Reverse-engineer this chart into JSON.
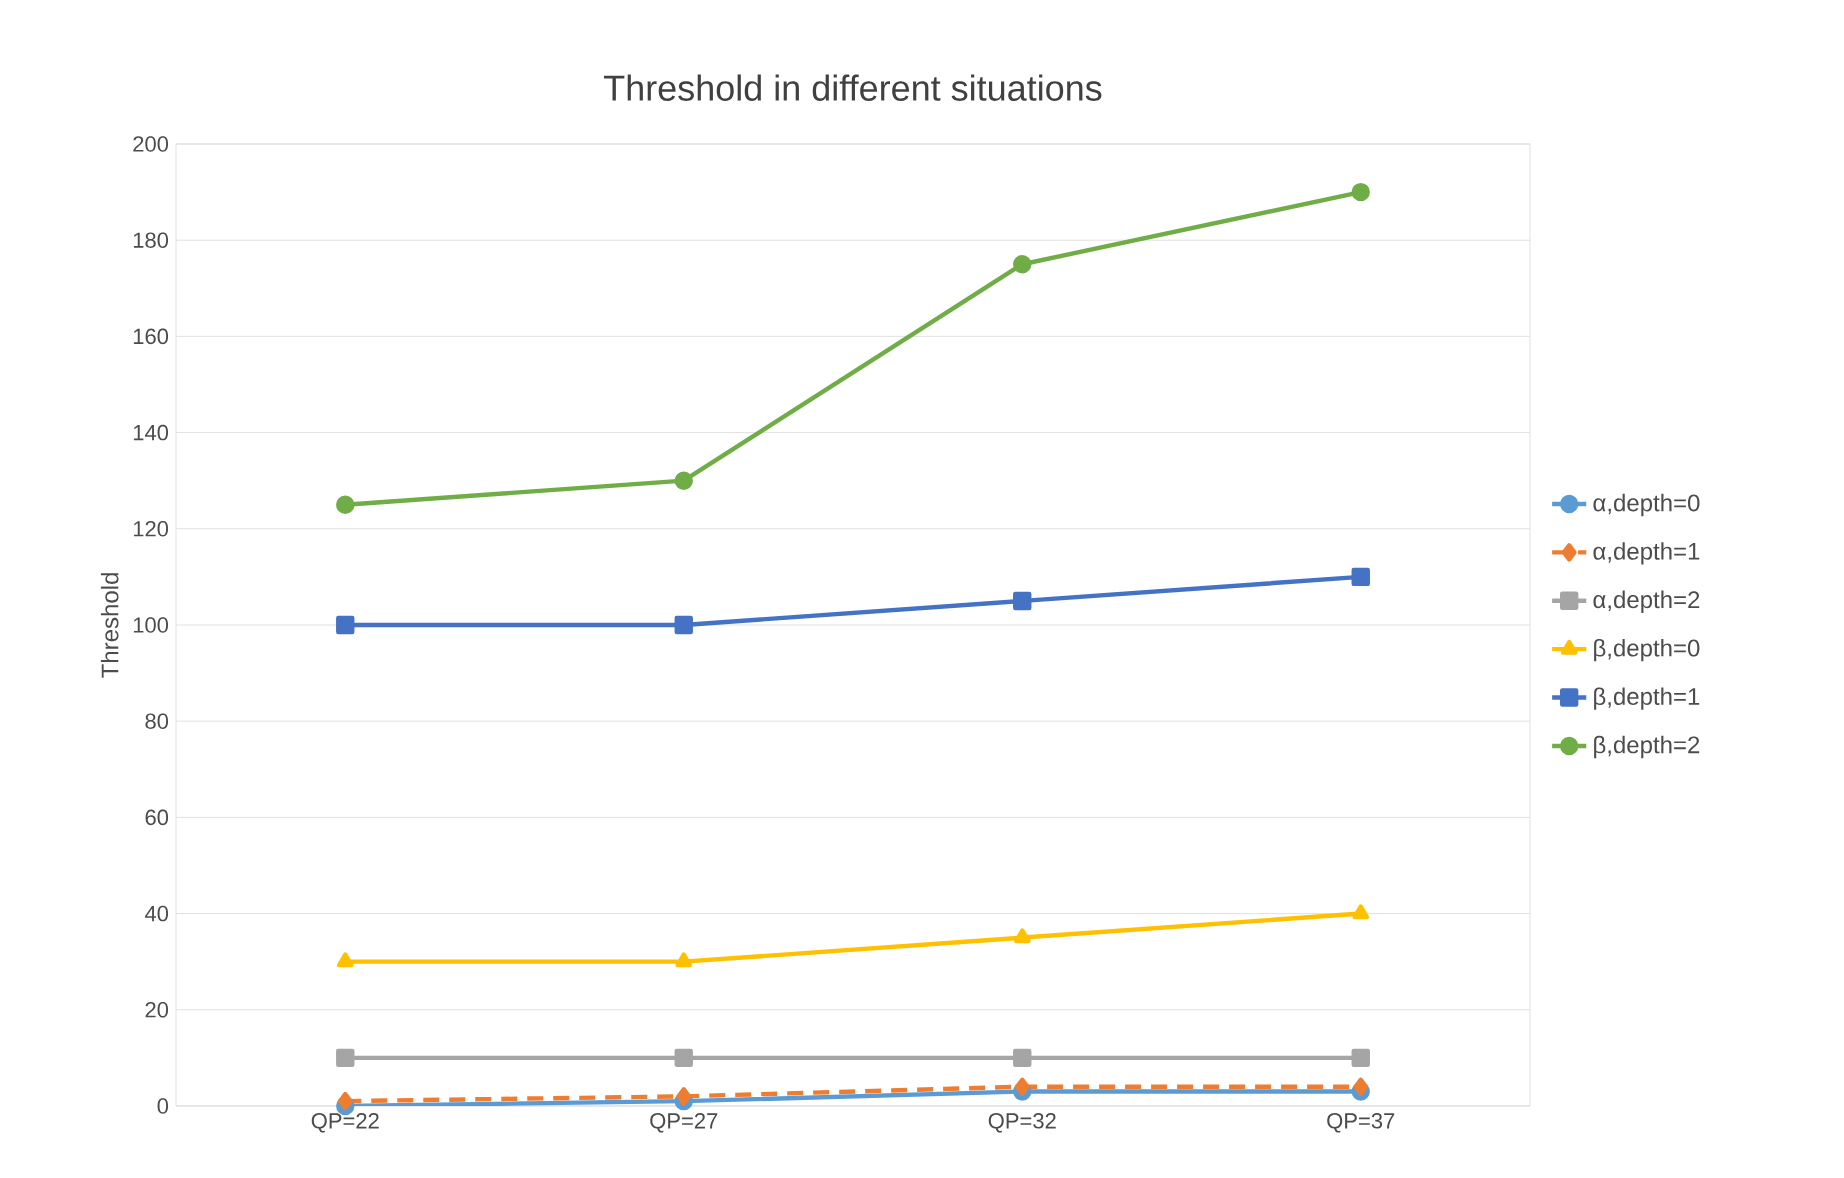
{
  "chart_data": {
    "type": "line",
    "title": "Threshold in different situations",
    "ylabel": "Threshold",
    "categories": [
      "QP=22",
      "QP=27",
      "QP=32",
      "QP=37"
    ],
    "series": [
      {
        "name": "α,depth=0",
        "color": "#5b9bd5",
        "marker": "circle",
        "line_style": "solid",
        "values": [
          0,
          1,
          3,
          3
        ]
      },
      {
        "name": "α,depth=1",
        "color": "#ed7d31",
        "marker": "diamond",
        "line_style": "dashed",
        "values": [
          1,
          2,
          4,
          4
        ]
      },
      {
        "name": "α,depth=2",
        "color": "#a5a5a5",
        "marker": "square",
        "line_style": "solid",
        "values": [
          10,
          10,
          10,
          10
        ]
      },
      {
        "name": "β,depth=0",
        "color": "#ffc000",
        "marker": "triangle",
        "line_style": "solid",
        "values": [
          30,
          30,
          35,
          40
        ]
      },
      {
        "name": "β,depth=1",
        "color": "#4472c4",
        "marker": "square",
        "line_style": "solid",
        "values": [
          100,
          100,
          105,
          110
        ]
      },
      {
        "name": "β,depth=2",
        "color": "#70ad47",
        "marker": "circle",
        "line_style": "solid",
        "values": [
          125,
          130,
          175,
          190
        ]
      }
    ],
    "ylim": [
      0,
      200
    ],
    "yticks": [
      0,
      20,
      40,
      60,
      80,
      100,
      120,
      140,
      160,
      180,
      200
    ],
    "grid": "y",
    "legend": "right"
  }
}
